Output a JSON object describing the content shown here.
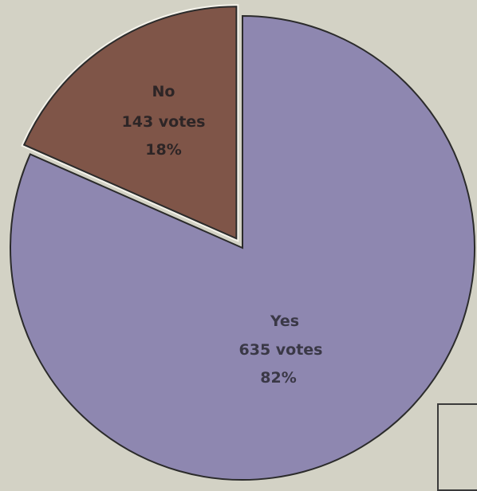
{
  "chart_data": {
    "type": "pie",
    "title": "",
    "slices": [
      {
        "label": "Yes",
        "votes_text": "635 votes",
        "percent_text": "82%",
        "value": 635,
        "percent": 82,
        "color": "#8e87b0",
        "exploded": false
      },
      {
        "label": "No",
        "votes_text": "143 votes",
        "percent_text": "18%",
        "value": 143,
        "percent": 18,
        "color": "#7f5548",
        "exploded": true
      }
    ],
    "legend": "none",
    "border_color": "#2b2b2b",
    "background": "#d3d2c5"
  }
}
